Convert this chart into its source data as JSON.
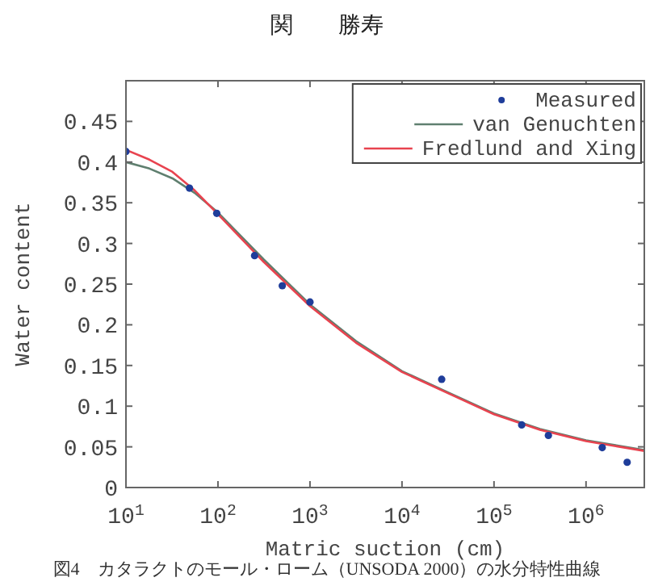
{
  "chart_data": {
    "type": "scatter",
    "title": "関　　勝寿",
    "xlabel": "Matric suction (cm)",
    "ylabel": "Water content",
    "log": "x",
    "xlim": [
      10,
      4300000
    ],
    "ylim": [
      0,
      0.5
    ],
    "xticks": [
      {
        "value": 10,
        "label": "10$^{1}$"
      },
      {
        "value": 100,
        "label": "10$^{2}$"
      },
      {
        "value": 1000,
        "label": "10$^{3}$"
      },
      {
        "value": 10000,
        "label": "10$^{4}$"
      },
      {
        "value": 100000,
        "label": "10$^{5}$"
      },
      {
        "value": 1000000,
        "label": "10$^{6}$"
      }
    ],
    "yticks": [
      0,
      0.05,
      0.1,
      0.15,
      0.2,
      0.25,
      0.3,
      0.35,
      0.4,
      0.45,
      {
        "value": 0.5,
        "label": null
      }
    ],
    "grid": false,
    "legend": "top right",
    "series": [
      {
        "name": "Measured",
        "marker": "circle",
        "color": "#1f3d9a",
        "x": [
          10,
          49,
          97,
          250,
          500,
          1000,
          27000,
          200000,
          390000,
          1500000,
          2800000
        ],
        "values": [
          0.413,
          0.368,
          0.337,
          0.285,
          0.248,
          0.228,
          0.133,
          0.077,
          0.064,
          0.049,
          0.031
        ]
      },
      {
        "name": "van Genuchten",
        "type": "line",
        "marker": "none",
        "color": "#5f7f6f",
        "x": [
          10,
          18,
          32,
          56,
          100,
          316,
          1000,
          3160,
          10000,
          31600,
          100000,
          316000,
          1000000,
          4300000
        ],
        "values": [
          0.4,
          0.392,
          0.38,
          0.362,
          0.338,
          0.28,
          0.225,
          0.18,
          0.143,
          0.117,
          0.091,
          0.072,
          0.058,
          0.046
        ]
      },
      {
        "name": "Fredlund and Xing",
        "type": "line",
        "marker": "none",
        "color": "#e8434f",
        "x": [
          10,
          18,
          32,
          56,
          100,
          316,
          1000,
          3160,
          10000,
          31600,
          100000,
          316000,
          1000000,
          4300000
        ],
        "values": [
          0.415,
          0.403,
          0.388,
          0.365,
          0.336,
          0.277,
          0.223,
          0.178,
          0.142,
          0.116,
          0.09,
          0.071,
          0.057,
          0.045
        ]
      }
    ],
    "annotations": [
      "図4　カタラクトのモール・ローム（UNSODA 2000）の水分特性曲線"
    ]
  }
}
